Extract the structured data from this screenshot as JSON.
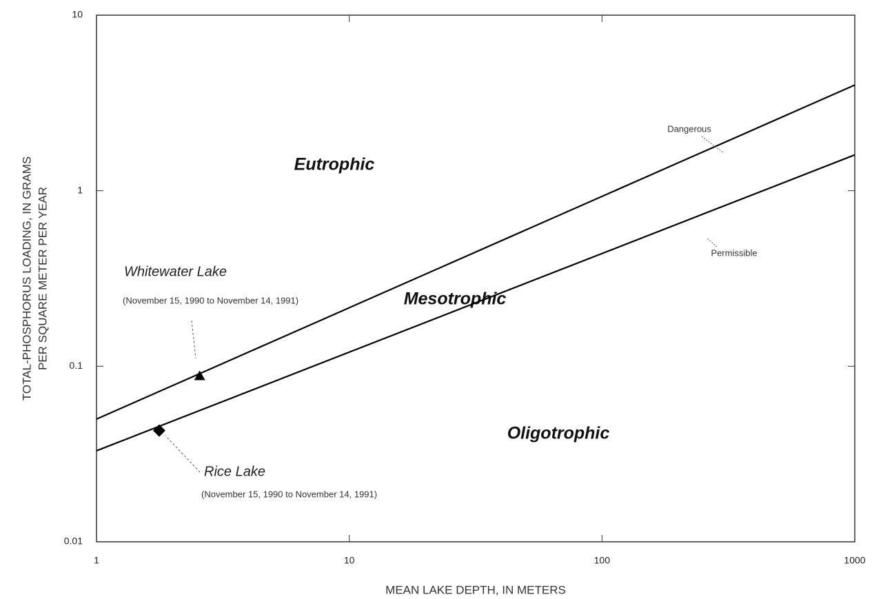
{
  "chart_data": {
    "type": "line",
    "xlabel": "MEAN LAKE DEPTH, IN METERS",
    "ylabel": [
      "TOTAL-PHOSPHORUS LOADING, IN GRAMS",
      "PER SQUARE METER PER YEAR"
    ],
    "xscale": "log",
    "yscale": "log",
    "grid": false,
    "xlim": [
      1,
      1000
    ],
    "xticks": [
      1,
      10,
      100,
      1000
    ],
    "ylim": [
      0.01,
      10
    ],
    "yticks": [
      0.01,
      0.1,
      1,
      10
    ],
    "zones": [
      "Eutrophic",
      "Mesotrophic",
      "Oligotrophic"
    ],
    "series": [
      {
        "name": "Dangerous",
        "color": "#000000",
        "x": [
          1,
          1000
        ],
        "values": [
          0.05,
          4
        ]
      },
      {
        "name": "Permissible",
        "color": "#000000",
        "x": [
          1,
          1000
        ],
        "values": [
          0.033,
          1.6
        ]
      },
      {
        "name": "Whitewater Lake",
        "color": "#000000",
        "marker": "triangle",
        "period": "(November 15, 1990 to November 14, 1991)",
        "x": [
          2.56
        ],
        "values": [
          0.088
        ]
      },
      {
        "name": "Rice Lake",
        "color": "#000000",
        "marker": "diamond",
        "period": "(November 15, 1990 to November 14, 1991)",
        "x": [
          1.77
        ],
        "values": [
          0.043
        ]
      }
    ]
  }
}
